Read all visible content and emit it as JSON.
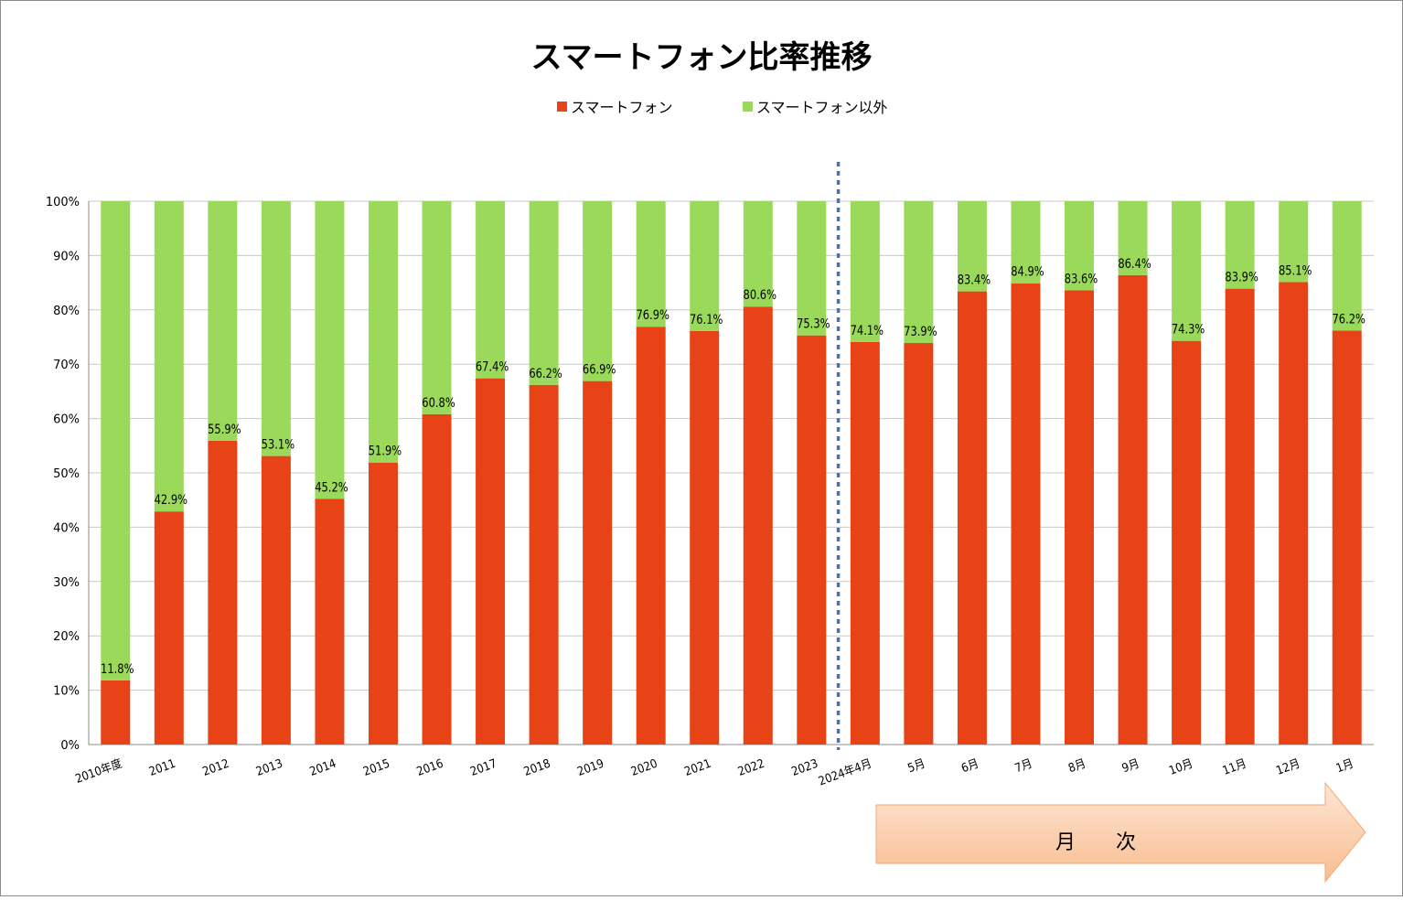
{
  "chart_data": {
    "type": "bar",
    "stacked": true,
    "title": "スマートフォン比率推移",
    "categories": [
      "2010年度",
      "2011",
      "2012",
      "2013",
      "2014",
      "2015",
      "2016",
      "2017",
      "2018",
      "2019",
      "2020",
      "2021",
      "2022",
      "2023",
      "2024年4月",
      "5月",
      "6月",
      "7月",
      "8月",
      "9月",
      "10月",
      "11月",
      "12月",
      "1月"
    ],
    "series": [
      {
        "name": "スマートフォン",
        "color": "#e84316",
        "values": [
          11.8,
          42.9,
          55.9,
          53.1,
          45.2,
          51.9,
          60.8,
          67.4,
          66.2,
          66.9,
          76.9,
          76.1,
          80.6,
          75.3,
          74.1,
          73.9,
          83.4,
          84.9,
          83.6,
          86.4,
          74.3,
          83.9,
          85.1,
          76.2
        ]
      },
      {
        "name": "スマートフォン以外",
        "color": "#9bd95a",
        "values": [
          88.2,
          57.1,
          44.1,
          46.9,
          54.8,
          48.1,
          39.2,
          32.6,
          33.8,
          33.1,
          23.1,
          23.9,
          19.4,
          24.7,
          25.9,
          26.1,
          16.6,
          15.1,
          16.4,
          13.6,
          25.7,
          16.1,
          14.9,
          23.8
        ]
      }
    ],
    "data_labels": [
      "11.8%",
      "42.9%",
      "55.9%",
      "53.1%",
      "45.2%",
      "51.9%",
      "60.8%",
      "67.4%",
      "66.2%",
      "66.9%",
      "76.9%",
      "76.1%",
      "80.6%",
      "75.3%",
      "74.1%",
      "73.9%",
      "83.4%",
      "84.9%",
      "83.6%",
      "86.4%",
      "74.3%",
      "83.9%",
      "85.1%",
      "76.2%"
    ],
    "y_ticks": [
      "0%",
      "10%",
      "20%",
      "30%",
      "40%",
      "50%",
      "60%",
      "70%",
      "80%",
      "90%",
      "100%"
    ],
    "ylim": [
      0,
      100
    ],
    "grid": true,
    "legend_position": "top-center",
    "divider_after_category": "2023",
    "divider_color": "#4472c4",
    "annotation_arrow_label": "月　　次",
    "annotation_arrow_colors": [
      "#fde6d4",
      "#f8bd8f"
    ]
  }
}
